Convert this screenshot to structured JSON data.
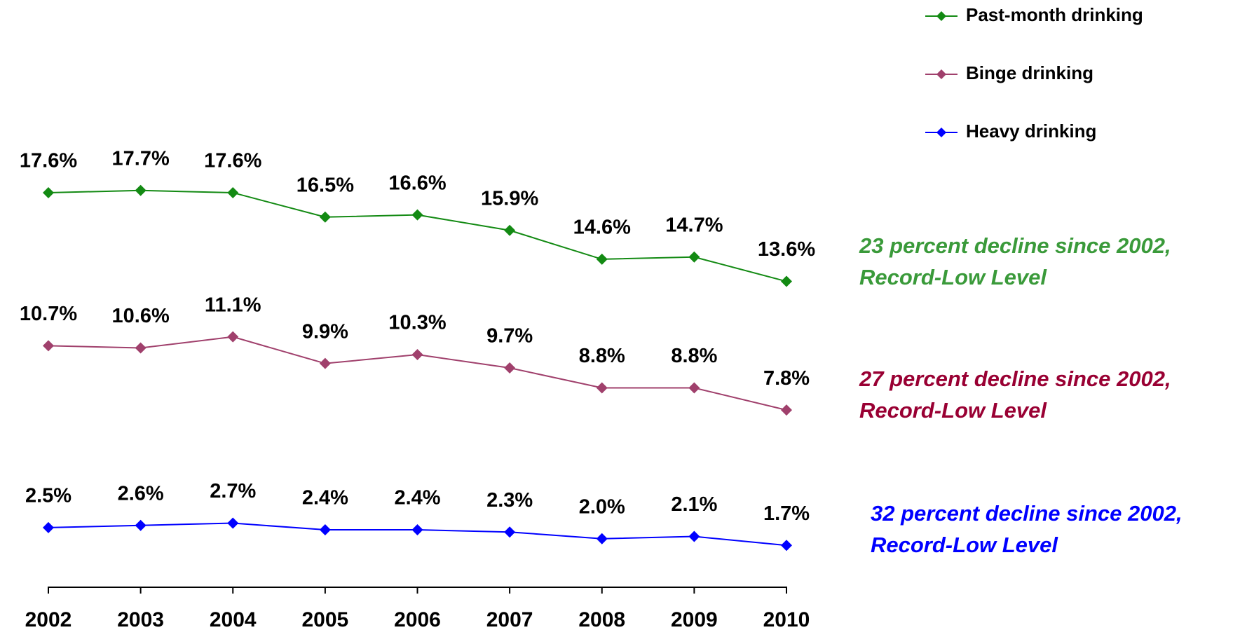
{
  "chart_data": {
    "type": "line",
    "categories": [
      "2002",
      "2003",
      "2004",
      "2005",
      "2006",
      "2007",
      "2008",
      "2009",
      "2010"
    ],
    "ylim": [
      0,
      20
    ],
    "series": [
      {
        "name": "Past-month drinking",
        "color": "#138a13",
        "values": [
          17.6,
          17.7,
          17.6,
          16.5,
          16.6,
          15.9,
          14.6,
          14.7,
          13.6
        ],
        "value_labels": [
          "17.6%",
          "17.7%",
          "17.6%",
          "16.5%",
          "16.6%",
          "15.9%",
          "14.6%",
          "14.7%",
          "13.6%"
        ]
      },
      {
        "name": "Binge drinking",
        "color": "#a0406c",
        "values": [
          10.7,
          10.6,
          11.1,
          9.9,
          10.3,
          9.7,
          8.8,
          8.8,
          7.8
        ],
        "value_labels": [
          "10.7%",
          "10.6%",
          "11.1%",
          "9.9%",
          "10.3%",
          "9.7%",
          "8.8%",
          "8.8%",
          "7.8%"
        ]
      },
      {
        "name": "Heavy drinking",
        "color": "#0000ff",
        "values": [
          2.5,
          2.6,
          2.7,
          2.4,
          2.4,
          2.3,
          2.0,
          2.1,
          1.7
        ],
        "value_labels": [
          "2.5%",
          "2.6%",
          "2.7%",
          "2.4%",
          "2.4%",
          "2.3%",
          "2.0%",
          "2.1%",
          "1.7%"
        ]
      }
    ],
    "annotations": [
      {
        "lines": [
          "23 percent decline since 2002,",
          "Record-Low Level"
        ],
        "color": "#3a9a3a"
      },
      {
        "lines": [
          "27 percent decline since 2002,",
          "Record-Low Level"
        ],
        "color": "#990033"
      },
      {
        "lines": [
          "32 percent decline since 2002,",
          "Record-Low Level"
        ],
        "color": "#0000ff"
      }
    ],
    "legend": "top-right"
  }
}
